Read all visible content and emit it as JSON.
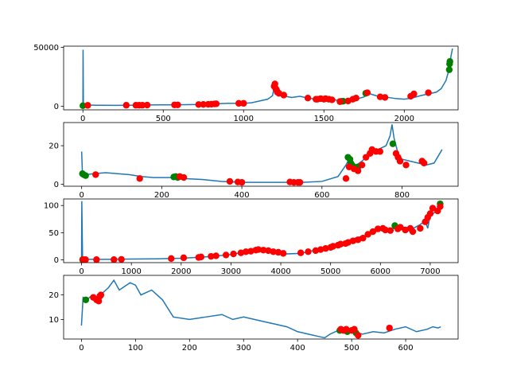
{
  "chart_data": [
    {
      "type": "line",
      "xlim": [
        -120,
        2335
      ],
      "ylim": [
        -3000,
        51000
      ],
      "xticks": [
        0,
        500,
        1000,
        1500,
        2000
      ],
      "yticks": [
        0,
        50000
      ],
      "xtick_labels": [
        "0",
        "500",
        "1000",
        "1500",
        "2000"
      ],
      "ytick_labels": [
        "0",
        "50000"
      ],
      "series": [
        {
          "role": "price",
          "color": "#1f77b4",
          "x": [
            0,
            1,
            3,
            6,
            30,
            100,
            200,
            300,
            400,
            500,
            600,
            700,
            800,
            900,
            1000,
            1050,
            1100,
            1150,
            1180,
            1190,
            1200,
            1210,
            1230,
            1260,
            1300,
            1350,
            1400,
            1450,
            1500,
            1550,
            1600,
            1650,
            1700,
            1750,
            1780,
            1800,
            1850,
            1900,
            1950,
            2000,
            2050,
            2100,
            2150,
            2200,
            2230,
            2260,
            2280,
            2290,
            2300
          ],
          "y": [
            500,
            48000,
            2500,
            1000,
            1000,
            900,
            800,
            900,
            1100,
            1200,
            1300,
            1500,
            2000,
            2500,
            2500,
            3000,
            4500,
            6000,
            9000,
            16000,
            12000,
            10000,
            9500,
            8500,
            7500,
            8500,
            7000,
            6000,
            5500,
            6500,
            4000,
            4500,
            6000,
            8000,
            11000,
            10000,
            8000,
            7500,
            6500,
            6000,
            7000,
            9000,
            10500,
            12000,
            15000,
            22000,
            32000,
            42000,
            49000
          ]
        },
        {
          "role": "buy-markers",
          "color": "#008000",
          "x": [
            0,
            1600,
            1610,
            1620,
            1760,
            2280,
            2282,
            2284
          ],
          "y": [
            500,
            4000,
            4200,
            4300,
            11000,
            31000,
            36000,
            38000
          ]
        },
        {
          "role": "sell-markers",
          "color": "#ff0000",
          "x": [
            30,
            270,
            330,
            350,
            370,
            400,
            570,
            590,
            720,
            750,
            780,
            800,
            820,
            830,
            970,
            1000,
            1190,
            1195,
            1200,
            1205,
            1210,
            1220,
            1250,
            1400,
            1450,
            1460,
            1480,
            1500,
            1510,
            1530,
            1550,
            1600,
            1650,
            1680,
            1700,
            1770,
            1850,
            1880,
            2040,
            2060,
            2150
          ],
          "y": [
            800,
            900,
            900,
            900,
            900,
            1000,
            1200,
            1200,
            1500,
            1600,
            1700,
            1800,
            2000,
            2100,
            2500,
            2500,
            17000,
            19000,
            15000,
            14000,
            12000,
            11000,
            9500,
            7000,
            6000,
            6000,
            6500,
            6000,
            6500,
            6000,
            5500,
            4000,
            4500,
            6000,
            7000,
            11500,
            8000,
            7500,
            8500,
            10500,
            11500
          ]
        }
      ]
    },
    {
      "type": "line",
      "xlim": [
        -45,
        940
      ],
      "ylim": [
        -1,
        32
      ],
      "xticks": [
        0,
        200,
        400,
        600,
        800
      ],
      "yticks": [
        0,
        20
      ],
      "xtick_labels": [
        "0",
        "200",
        "400",
        "600",
        "800"
      ],
      "ytick_labels": [
        "0",
        "20"
      ],
      "series": [
        {
          "role": "price",
          "color": "#1f77b4",
          "x": [
            0,
            2,
            10,
            30,
            60,
            90,
            120,
            150,
            180,
            220,
            250,
            300,
            350,
            400,
            450,
            500,
            550,
            600,
            640,
            660,
            670,
            680,
            700,
            720,
            740,
            760,
            770,
            775,
            780,
            790,
            800,
            820,
            840,
            860,
            880,
            900
          ],
          "y": [
            17,
            5.5,
            5,
            5.5,
            6,
            5.5,
            5,
            4,
            3.5,
            3.5,
            3,
            2.5,
            1.5,
            1,
            1,
            1,
            1,
            1.5,
            4,
            10,
            14,
            9,
            12,
            16,
            18,
            20,
            25,
            31,
            24,
            16,
            13,
            12,
            11,
            10,
            11,
            18
          ]
        },
        {
          "role": "buy-markers",
          "color": "#008000",
          "x": [
            2,
            5,
            10,
            230,
            235,
            240,
            665,
            670,
            672,
            675,
            680,
            685,
            690,
            777
          ],
          "y": [
            5.5,
            5,
            4.5,
            3.8,
            4,
            3.5,
            14,
            13,
            11,
            10,
            9,
            8,
            9,
            21
          ]
        },
        {
          "role": "sell-markers",
          "color": "#ff0000",
          "x": [
            35,
            145,
            245,
            255,
            370,
            390,
            400,
            520,
            530,
            540,
            545,
            660,
            668,
            680,
            690,
            700,
            710,
            720,
            725,
            735,
            745,
            785,
            790,
            795,
            810,
            850,
            855
          ],
          "y": [
            5,
            3,
            4,
            3.5,
            1.5,
            1.2,
            1,
            1.2,
            1,
            1,
            1,
            3,
            9,
            8,
            7,
            10,
            14,
            16,
            18,
            17,
            17,
            16,
            14,
            12,
            10,
            12,
            11
          ]
        }
      ]
    },
    {
      "type": "line",
      "xlim": [
        -360,
        7560
      ],
      "ylim": [
        -5,
        112
      ],
      "xticks": [
        0,
        1000,
        2000,
        3000,
        4000,
        5000,
        6000,
        7000
      ],
      "yticks": [
        0,
        50,
        100
      ],
      "xtick_labels": [
        "0",
        "1000",
        "2000",
        "3000",
        "4000",
        "5000",
        "6000",
        "7000"
      ],
      "ytick_labels": [
        "0",
        "50",
        "100"
      ],
      "series": [
        {
          "role": "price",
          "color": "#1f77b4",
          "x": [
            0,
            5,
            20,
            50,
            500,
            1000,
            1500,
            2000,
            2400,
            2700,
            3000,
            3300,
            3500,
            3700,
            3900,
            4100,
            4400,
            4700,
            5000,
            5300,
            5500,
            5700,
            5900,
            6000,
            6200,
            6400,
            6600,
            6700,
            6800,
            6900,
            6950,
            7000,
            7050,
            7100,
            7150,
            7200
          ],
          "y": [
            0.5,
            108,
            3,
            1,
            1,
            1.5,
            2,
            3,
            5,
            7,
            10,
            15,
            20,
            18,
            15,
            11,
            12,
            18,
            25,
            33,
            40,
            45,
            55,
            60,
            55,
            62,
            55,
            60,
            65,
            72,
            58,
            82,
            85,
            88,
            95,
            100
          ]
        },
        {
          "role": "buy-markers",
          "color": "#008000",
          "x": [
            20,
            6290,
            7200
          ],
          "y": [
            0.5,
            63,
            103
          ]
        },
        {
          "role": "sell-markers",
          "color": "#ff0000",
          "x": [
            30,
            80,
            300,
            650,
            800,
            1800,
            2050,
            2350,
            2400,
            2600,
            2700,
            2900,
            3050,
            3200,
            3300,
            3400,
            3500,
            3550,
            3650,
            3750,
            3850,
            3950,
            4050,
            4400,
            4550,
            4700,
            4800,
            4900,
            5000,
            5050,
            5150,
            5200,
            5300,
            5350,
            5450,
            5550,
            5650,
            5750,
            5850,
            5950,
            6050,
            6100,
            6200,
            6350,
            6400,
            6500,
            6600,
            6650,
            6800,
            6900,
            6950,
            7000,
            7050,
            7150,
            7200
          ],
          "y": [
            0.5,
            0.5,
            0.5,
            0.5,
            1,
            2.5,
            4,
            4.5,
            5.5,
            6.5,
            7.5,
            9,
            11,
            13,
            15,
            16,
            18,
            19,
            18,
            17,
            15,
            14,
            12,
            13,
            15,
            17,
            19,
            21,
            23,
            25,
            27,
            29,
            30,
            32,
            35,
            37,
            40,
            47,
            52,
            57,
            58,
            55,
            54,
            57,
            60,
            55,
            58,
            52,
            58,
            70,
            78,
            85,
            95,
            90,
            98
          ]
        }
      ]
    },
    {
      "type": "line",
      "xlim": [
        -33,
        697
      ],
      "ylim": [
        2,
        28
      ],
      "xticks": [
        0,
        100,
        200,
        300,
        400,
        500,
        600
      ],
      "yticks": [
        10,
        20
      ],
      "xtick_labels": [
        "0",
        "100",
        "200",
        "300",
        "400",
        "500",
        "600"
      ],
      "ytick_labels": [
        "10",
        "20"
      ],
      "series": [
        {
          "role": "price",
          "color": "#1f77b4",
          "x": [
            0,
            3,
            10,
            20,
            30,
            40,
            50,
            60,
            70,
            90,
            100,
            110,
            130,
            150,
            170,
            200,
            230,
            260,
            280,
            300,
            320,
            340,
            360,
            380,
            400,
            420,
            440,
            450,
            460,
            480,
            500,
            520,
            540,
            560,
            580,
            600,
            620,
            640,
            650,
            660,
            665
          ],
          "y": [
            7.5,
            19,
            18,
            20,
            19,
            21,
            23,
            26,
            22,
            25,
            24,
            20,
            22,
            18,
            11,
            10,
            11,
            12,
            10,
            11,
            10,
            9,
            8,
            7,
            5,
            4,
            3,
            2.5,
            4,
            6,
            5,
            4,
            5,
            4.5,
            6,
            7,
            5,
            6,
            7,
            6.5,
            7
          ]
        },
        {
          "role": "buy-markers",
          "color": "#008000",
          "x": [
            8,
            478,
            492,
            508
          ],
          "y": [
            18,
            5.5,
            5,
            4.5
          ]
        },
        {
          "role": "sell-markers",
          "color": "#ff0000",
          "x": [
            22,
            28,
            32,
            34,
            36,
            480,
            485,
            490,
            500,
            505,
            512,
            570
          ],
          "y": [
            19,
            18,
            17.5,
            19.5,
            20,
            6,
            5.5,
            6,
            5.5,
            6,
            3.5,
            6.5
          ]
        }
      ]
    }
  ]
}
